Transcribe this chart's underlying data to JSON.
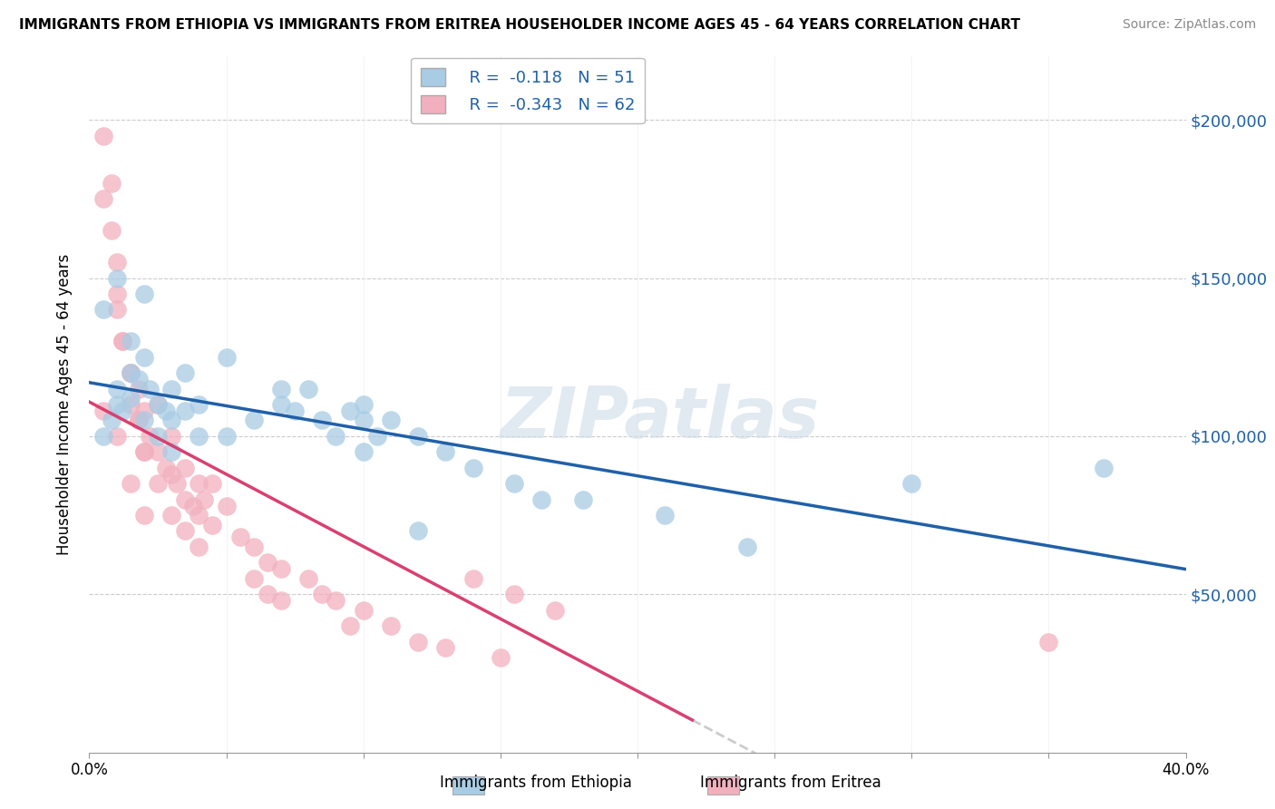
{
  "title": "IMMIGRANTS FROM ETHIOPIA VS IMMIGRANTS FROM ERITREA HOUSEHOLDER INCOME AGES 45 - 64 YEARS CORRELATION CHART",
  "source": "Source: ZipAtlas.com",
  "ylabel": "Householder Income Ages 45 - 64 years",
  "xlim": [
    0.0,
    0.4
  ],
  "ylim": [
    0,
    220000
  ],
  "yticks": [
    0,
    50000,
    100000,
    150000,
    200000
  ],
  "ytick_labels": [
    "",
    "$50,000",
    "$100,000",
    "$150,000",
    "$200,000"
  ],
  "xticks": [
    0.0,
    0.05,
    0.1,
    0.15,
    0.2,
    0.25,
    0.3,
    0.35,
    0.4
  ],
  "xtick_labels": [
    "0.0%",
    "",
    "",
    "",
    "",
    "",
    "",
    "",
    "40.0%"
  ],
  "legend_r1": "R =  -0.118",
  "legend_n1": "N = 51",
  "legend_r2": "R =  -0.343",
  "legend_n2": "N = 62",
  "color_ethiopia": "#a8cce4",
  "color_eritrea": "#f2b0be",
  "line_color_ethiopia": "#2060a8",
  "line_color_eritrea": "#d94070",
  "watermark": "ZIPatlas",
  "ethiopia_x": [
    0.005,
    0.008,
    0.01,
    0.01,
    0.012,
    0.015,
    0.015,
    0.018,
    0.02,
    0.02,
    0.022,
    0.025,
    0.025,
    0.028,
    0.03,
    0.03,
    0.03,
    0.035,
    0.04,
    0.04,
    0.05,
    0.06,
    0.07,
    0.075,
    0.08,
    0.085,
    0.09,
    0.095,
    0.1,
    0.1,
    0.1,
    0.105,
    0.11,
    0.12,
    0.13,
    0.14,
    0.155,
    0.165,
    0.18,
    0.21,
    0.24,
    0.3,
    0.37,
    0.005,
    0.01,
    0.015,
    0.02,
    0.035,
    0.05,
    0.07,
    0.12
  ],
  "ethiopia_y": [
    100000,
    105000,
    110000,
    115000,
    108000,
    120000,
    112000,
    118000,
    125000,
    105000,
    115000,
    110000,
    100000,
    108000,
    115000,
    105000,
    95000,
    108000,
    110000,
    100000,
    100000,
    105000,
    110000,
    108000,
    115000,
    105000,
    100000,
    108000,
    110000,
    105000,
    95000,
    100000,
    105000,
    100000,
    95000,
    90000,
    85000,
    80000,
    80000,
    75000,
    65000,
    85000,
    90000,
    140000,
    150000,
    130000,
    145000,
    120000,
    125000,
    115000,
    70000
  ],
  "eritrea_x": [
    0.005,
    0.008,
    0.01,
    0.01,
    0.012,
    0.015,
    0.015,
    0.018,
    0.018,
    0.02,
    0.02,
    0.022,
    0.025,
    0.025,
    0.028,
    0.03,
    0.03,
    0.032,
    0.035,
    0.035,
    0.038,
    0.04,
    0.04,
    0.042,
    0.045,
    0.045,
    0.05,
    0.055,
    0.06,
    0.065,
    0.07,
    0.08,
    0.085,
    0.09,
    0.1,
    0.11,
    0.12,
    0.14,
    0.155,
    0.17,
    0.005,
    0.008,
    0.01,
    0.012,
    0.015,
    0.018,
    0.02,
    0.025,
    0.03,
    0.035,
    0.04,
    0.06,
    0.065,
    0.07,
    0.095,
    0.13,
    0.15,
    0.005,
    0.01,
    0.015,
    0.02,
    0.35
  ],
  "eritrea_y": [
    175000,
    165000,
    155000,
    140000,
    130000,
    120000,
    110000,
    115000,
    105000,
    108000,
    95000,
    100000,
    110000,
    95000,
    90000,
    100000,
    88000,
    85000,
    90000,
    80000,
    78000,
    85000,
    75000,
    80000,
    85000,
    72000,
    78000,
    68000,
    65000,
    60000,
    58000,
    55000,
    50000,
    48000,
    45000,
    40000,
    35000,
    55000,
    50000,
    45000,
    195000,
    180000,
    145000,
    130000,
    120000,
    105000,
    95000,
    85000,
    75000,
    70000,
    65000,
    55000,
    50000,
    48000,
    40000,
    33000,
    30000,
    108000,
    100000,
    85000,
    75000,
    35000
  ]
}
